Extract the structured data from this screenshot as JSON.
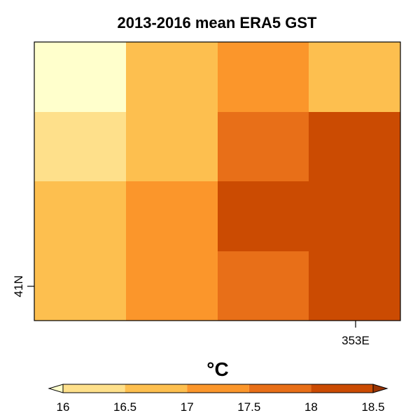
{
  "chart_data": {
    "type": "heatmap",
    "title": "2013-2016 mean ERA5 GST",
    "x_tick_labels": [
      "353E"
    ],
    "y_tick_labels": [
      "41N"
    ],
    "colorbar": {
      "unit": "°C",
      "ticks": [
        "16",
        "16.5",
        "17",
        "17.5",
        "18",
        "18.5"
      ],
      "bin_edges": [
        16,
        16.5,
        17,
        17.5,
        18,
        18.5
      ],
      "colors": [
        "#fee08b",
        "#fdbf4f",
        "#fb962b",
        "#e86f18",
        "#cb4b02"
      ],
      "under_color": "#ffffcc",
      "over_color": "#993404",
      "extend": "both"
    },
    "grid": {
      "rows": 4,
      "cols": 4,
      "values": [
        [
          15.8,
          16.7,
          17.2,
          16.7
        ],
        [
          16.3,
          16.7,
          17.7,
          18.3
        ],
        [
          16.7,
          17.2,
          18.3,
          18.3
        ],
        [
          16.7,
          17.2,
          17.7,
          18.3
        ]
      ]
    }
  }
}
